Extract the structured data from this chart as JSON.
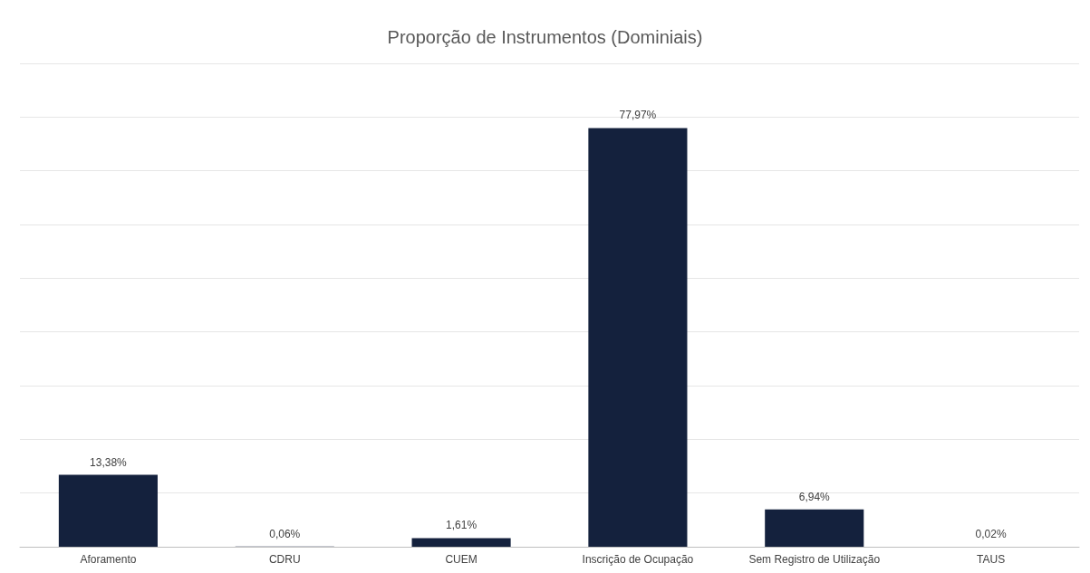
{
  "chart_data": {
    "type": "bar",
    "title": "Proporção de Instrumentos (Dominiais)",
    "categories": [
      "Aforamento",
      "CDRU",
      "CUEM",
      "Inscrição de Ocupação",
      "Sem Registro de Utilização",
      "TAUS"
    ],
    "values": [
      13.38,
      0.06,
      1.61,
      77.97,
      6.94,
      0.02
    ],
    "value_labels": [
      "13,38%",
      "0,06%",
      "1,61%",
      "77,97%",
      "6,94%",
      "0,02%"
    ],
    "color": "#14213d",
    "ylim": [
      0,
      90
    ],
    "yticks": [
      {
        "value": 0,
        "label": null
      },
      {
        "value": 10,
        "label": null
      },
      {
        "value": 20,
        "label": null
      },
      {
        "value": 30,
        "label": null
      },
      {
        "value": 40,
        "label": null
      },
      {
        "value": 50,
        "label": null
      },
      {
        "value": 60,
        "label": null
      },
      {
        "value": 70,
        "label": null
      },
      {
        "value": 80,
        "label": null
      },
      {
        "value": 90,
        "label": null
      }
    ],
    "tick_labels": "x",
    "grid": "y"
  }
}
